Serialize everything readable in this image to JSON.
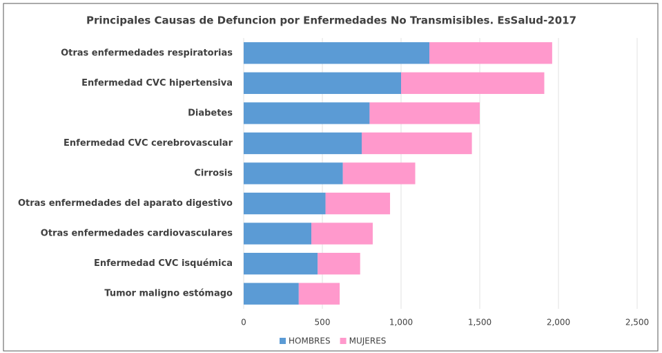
{
  "chart_data": {
    "type": "bar",
    "orientation": "horizontal",
    "stacked": true,
    "title": "Principales Causas de Defuncion por Enfermedades No Transmisibles. EsSalud-2017",
    "categories": [
      "Otras enfermedades respiratorias",
      "Enfermedad CVC hipertensiva",
      "Diabetes",
      "Enfermedad CVC cerebrovascular",
      "Cirrosis",
      "Otras enfermedades del aparato digestivo",
      "Otras enfermedades cardiovasculares",
      "Enfermedad CVC isquémica",
      "Tumor maligno estómago"
    ],
    "series": [
      {
        "name": "HOMBRES",
        "color": "#5b9bd5",
        "values": [
          1180,
          1000,
          800,
          750,
          630,
          520,
          430,
          470,
          350
        ]
      },
      {
        "name": "MUJERES",
        "color": "#ff99cc",
        "values": [
          780,
          910,
          700,
          700,
          460,
          410,
          390,
          270,
          260
        ]
      }
    ],
    "xlim": [
      0,
      2500
    ],
    "xticks": [
      0,
      500,
      {
        "value": 1000,
        "label": "1,000"
      },
      {
        "value": 1500,
        "label": "1,500"
      },
      {
        "value": 2000,
        "label": "2,000"
      },
      {
        "value": 2500,
        "label": "2,500"
      }
    ],
    "grid": true,
    "legend": "bottom"
  }
}
